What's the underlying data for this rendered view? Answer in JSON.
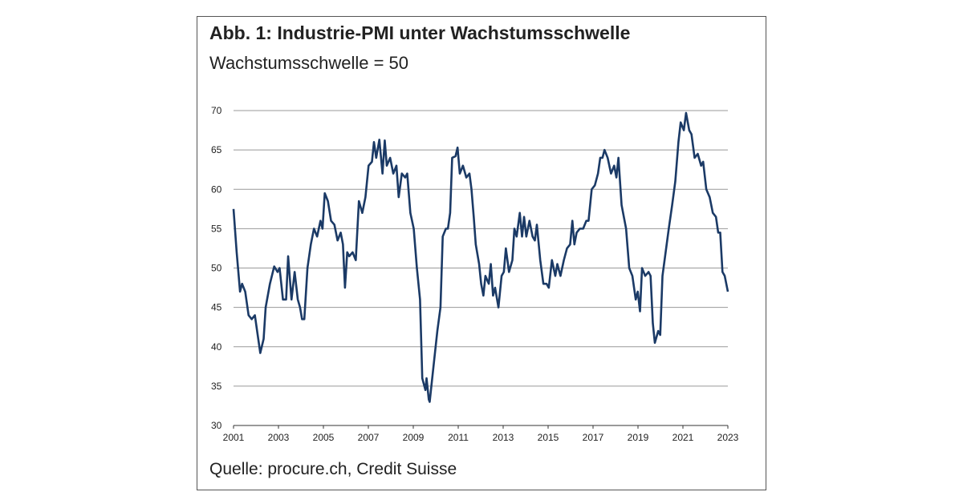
{
  "chart_data": {
    "type": "line",
    "title": "Abb. 1: Industrie-PMI unter Wachstumsschwelle",
    "subtitle": "Wachstumsschwelle = 50",
    "source": "Quelle: procure.ch, Credit Suisse",
    "xlim": [
      2001,
      2023
    ],
    "xticks": [
      2001,
      2003,
      2005,
      2007,
      2009,
      2011,
      2013,
      2015,
      2017,
      2019,
      2021,
      2023
    ],
    "ylim": [
      30,
      70
    ],
    "yticks": [
      30,
      35,
      40,
      45,
      50,
      55,
      60,
      65,
      70
    ],
    "grid": true,
    "series": [
      {
        "color": "#1b3a66",
        "x": [
          2001,
          2001.14,
          2001.29,
          2001.38,
          2001.52,
          2001.67,
          2001.81,
          2001.95,
          2002.1,
          2002.19,
          2002.34,
          2002.43,
          2002.62,
          2002.81,
          2002.96,
          2003.05,
          2003.2,
          2003.34,
          2003.43,
          2003.58,
          2003.72,
          2003.86,
          2003.96,
          2004.05,
          2004.15,
          2004.29,
          2004.44,
          2004.58,
          2004.72,
          2004.87,
          2004.96,
          2005.06,
          2005.2,
          2005.34,
          2005.49,
          2005.63,
          2005.77,
          2005.87,
          2005.96,
          2006.06,
          2006.15,
          2006.3,
          2006.44,
          2006.58,
          2006.73,
          2006.87,
          2007.01,
          2007.16,
          2007.25,
          2007.35,
          2007.49,
          2007.63,
          2007.73,
          2007.82,
          2007.97,
          2008.11,
          2008.25,
          2008.35,
          2008.49,
          2008.64,
          2008.73,
          2008.87,
          2009.02,
          2009.16,
          2009.3,
          2009.4,
          2009.54,
          2009.59,
          2009.69,
          2009.73,
          2009.88,
          2010.07,
          2010.21,
          2010.31,
          2010.45,
          2010.54,
          2010.64,
          2010.73,
          2010.88,
          2010.97,
          2011.07,
          2011.21,
          2011.36,
          2011.5,
          2011.59,
          2011.69,
          2011.78,
          2011.93,
          2012.02,
          2012.12,
          2012.21,
          2012.36,
          2012.45,
          2012.55,
          2012.64,
          2012.79,
          2012.93,
          2013.03,
          2013.12,
          2013.26,
          2013.41,
          2013.5,
          2013.6,
          2013.74,
          2013.84,
          2013.93,
          2014.03,
          2014.17,
          2014.31,
          2014.41,
          2014.5,
          2014.65,
          2014.79,
          2014.93,
          2015.03,
          2015.17,
          2015.32,
          2015.41,
          2015.55,
          2015.7,
          2015.84,
          2015.98,
          2016.08,
          2016.17,
          2016.27,
          2016.41,
          2016.56,
          2016.7,
          2016.8,
          2016.94,
          2017.08,
          2017.22,
          2017.32,
          2017.42,
          2017.51,
          2017.65,
          2017.8,
          2017.94,
          2018.04,
          2018.13,
          2018.27,
          2018.47,
          2018.61,
          2018.75,
          2018.9,
          2018.99,
          2019.09,
          2019.18,
          2019.32,
          2019.47,
          2019.56,
          2019.66,
          2019.75,
          2019.9,
          2019.99,
          2020.09,
          2020.23,
          2020.37,
          2020.52,
          2020.66,
          2020.8,
          2020.9,
          2021.04,
          2021.14,
          2021.28,
          2021.38,
          2021.52,
          2021.66,
          2021.81,
          2021.9,
          2022.04,
          2022.19,
          2022.33,
          2022.47,
          2022.57,
          2022.66,
          2022.76,
          2022.86,
          2023
        ],
        "values": [
          57.5,
          52,
          47,
          48,
          47,
          44,
          43.5,
          44,
          41,
          39.2,
          41,
          45,
          48,
          50.2,
          49.5,
          50,
          46,
          46,
          51.5,
          46,
          49.5,
          46,
          45,
          43.5,
          43.5,
          50,
          53,
          55,
          54,
          56,
          55,
          59.5,
          58.5,
          56,
          55.5,
          53.5,
          54.5,
          53,
          47.5,
          52,
          51.5,
          52,
          51,
          58.5,
          57,
          59,
          63,
          63.5,
          66,
          64,
          66.3,
          62,
          66.2,
          63,
          64,
          62,
          63,
          59,
          62,
          61.5,
          62,
          57,
          55,
          50,
          46,
          36,
          34.5,
          36,
          33.3,
          33,
          37,
          42,
          45,
          54,
          55,
          55,
          57,
          64,
          64.2,
          65.3,
          62,
          63,
          61.5,
          62,
          60,
          56.5,
          53,
          50.5,
          48,
          46.5,
          49,
          48,
          50.5,
          46.5,
          47.5,
          45,
          49,
          49.5,
          52.5,
          49.5,
          51,
          55,
          54,
          57,
          54,
          56.5,
          54,
          56,
          54,
          53.5,
          55.5,
          51,
          48,
          48,
          47.5,
          51,
          49,
          50.5,
          49,
          51,
          52.5,
          53,
          56,
          53,
          54.5,
          55,
          55,
          56,
          56,
          60,
          60.5,
          62,
          64,
          64,
          65,
          64,
          62,
          63,
          61.5,
          64,
          58,
          55,
          50,
          49,
          46,
          47,
          44.5,
          50,
          49,
          49.5,
          49,
          43,
          40.5,
          42,
          41.5,
          49,
          52,
          55,
          58,
          61,
          66,
          68.5,
          67.5,
          69.7,
          67.5,
          67,
          64,
          64.5,
          63,
          63.5,
          60,
          59,
          57,
          56.5,
          54.5,
          54.5,
          49.5,
          49,
          47
        ]
      }
    ]
  }
}
